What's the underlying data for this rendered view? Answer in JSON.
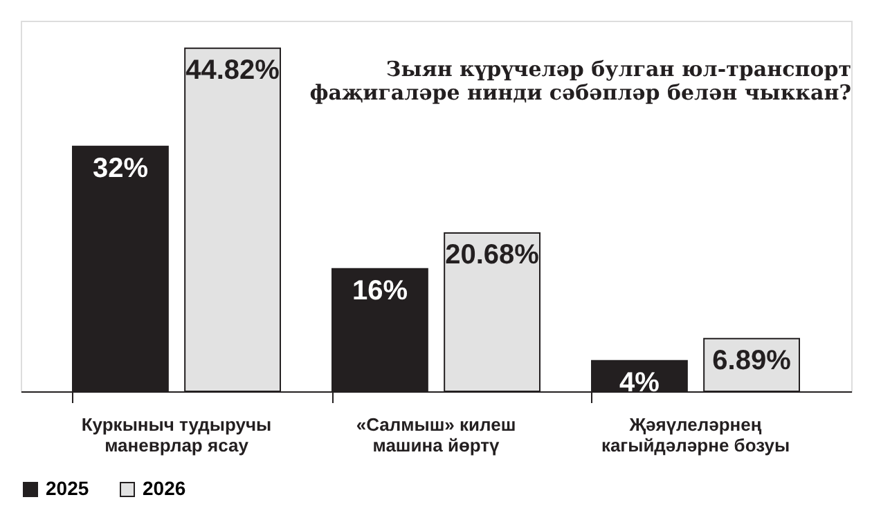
{
  "chart_data": {
    "type": "bar",
    "title": "Зыян күрүчеләр булган юл-транспорт\nфаҗигаләре нинди сәбәпләр белән чыккан?",
    "categories": [
      "Куркыныч тудыручы\nманеврлар ясау",
      "«Салмыш» килеш\nмашина йөртү",
      "Җәяүлеләрнең\nкагыйдәләрне бозуы"
    ],
    "series": [
      {
        "name": "2025",
        "color": "#231f20",
        "values": [
          32,
          16,
          4
        ],
        "value_labels": [
          "32%",
          "16%",
          "4%"
        ]
      },
      {
        "name": "2026",
        "color": "#e2e2e2",
        "values": [
          44.82,
          20.68,
          6.89
        ],
        "value_labels": [
          "44.82%",
          "20.68%",
          "6.89%"
        ]
      }
    ],
    "legend": "bottom",
    "grid": false
  }
}
